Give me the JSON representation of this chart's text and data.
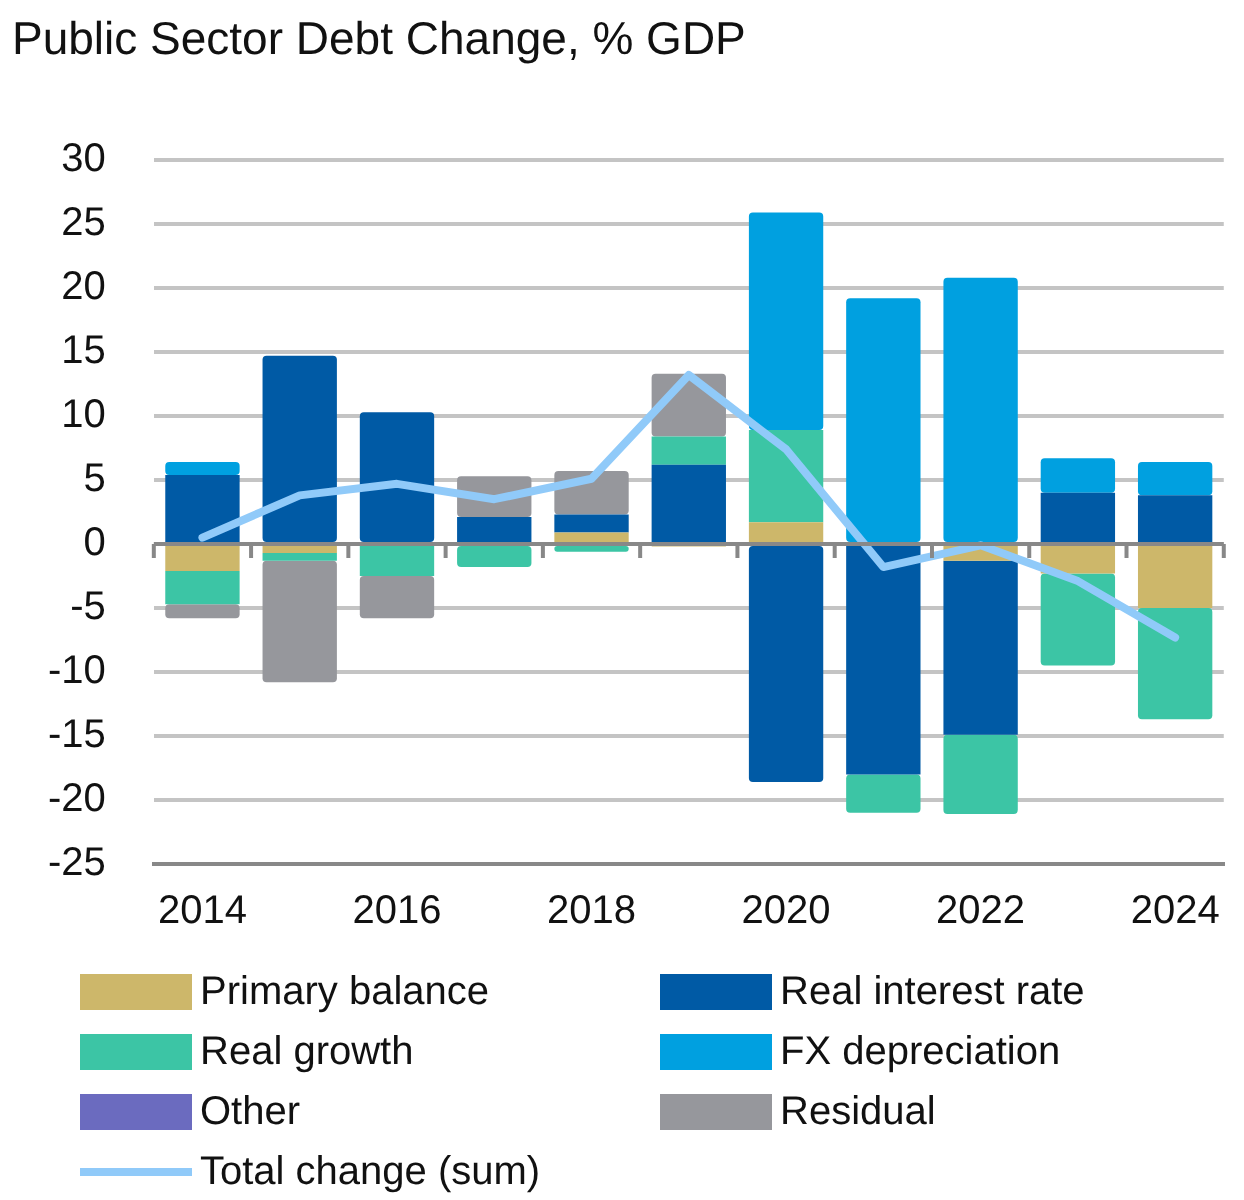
{
  "chart_data": {
    "type": "bar",
    "title": "Public Sector Debt Change, % GDP",
    "stacked": true,
    "categories": [
      "2014",
      null,
      "2016",
      null,
      "2018",
      null,
      "2020",
      null,
      "2022",
      null,
      "2024"
    ],
    "series": [
      {
        "name": "Primary balance",
        "color": "#cdb76a",
        "values": [
          -2.1,
          -0.7,
          0,
          0,
          0.9,
          -0.2,
          1.7,
          0,
          -1.3,
          -2.3,
          -5.0
        ]
      },
      {
        "name": "Real interest rate",
        "color": "#005aa5",
        "values": [
          5.4,
          14.7,
          10.3,
          2.1,
          1.4,
          6.2,
          -18.6,
          -18.0,
          -13.6,
          4.0,
          3.8
        ]
      },
      {
        "name": "Real growth",
        "color": "#3cc5a5",
        "values": [
          -2.6,
          -0.6,
          -2.5,
          -1.8,
          -0.6,
          2.2,
          7.2,
          -3.0,
          -6.2,
          -7.2,
          -8.7
        ]
      },
      {
        "name": "FX depreciation",
        "color": "#00a0e0",
        "values": [
          1.0,
          0,
          0,
          0,
          0,
          0,
          17.0,
          19.2,
          20.8,
          2.7,
          2.6
        ]
      },
      {
        "name": "Other",
        "color": "#6b6bbf",
        "values": [
          0,
          0,
          0,
          0,
          0,
          0,
          0,
          0,
          0,
          0,
          0
        ]
      },
      {
        "name": "Residual",
        "color": "#96979c",
        "values": [
          -1.1,
          -9.5,
          -3.3,
          3.2,
          3.4,
          4.9,
          0,
          0,
          0,
          0,
          0
        ]
      },
      {
        "name": "Total change (sum)",
        "type": "line",
        "color": "#90caf9",
        "values": [
          0.5,
          3.8,
          4.7,
          3.5,
          5.1,
          13.2,
          7.4,
          -1.8,
          -0.1,
          -2.9,
          -7.3
        ]
      }
    ],
    "ylim": [
      -25,
      30
    ],
    "yticks": [
      -25,
      -20,
      -15,
      -10,
      -5,
      0,
      5,
      10,
      15,
      20,
      25,
      30
    ],
    "grid": "y",
    "legend": "bottom",
    "marker": "none"
  }
}
